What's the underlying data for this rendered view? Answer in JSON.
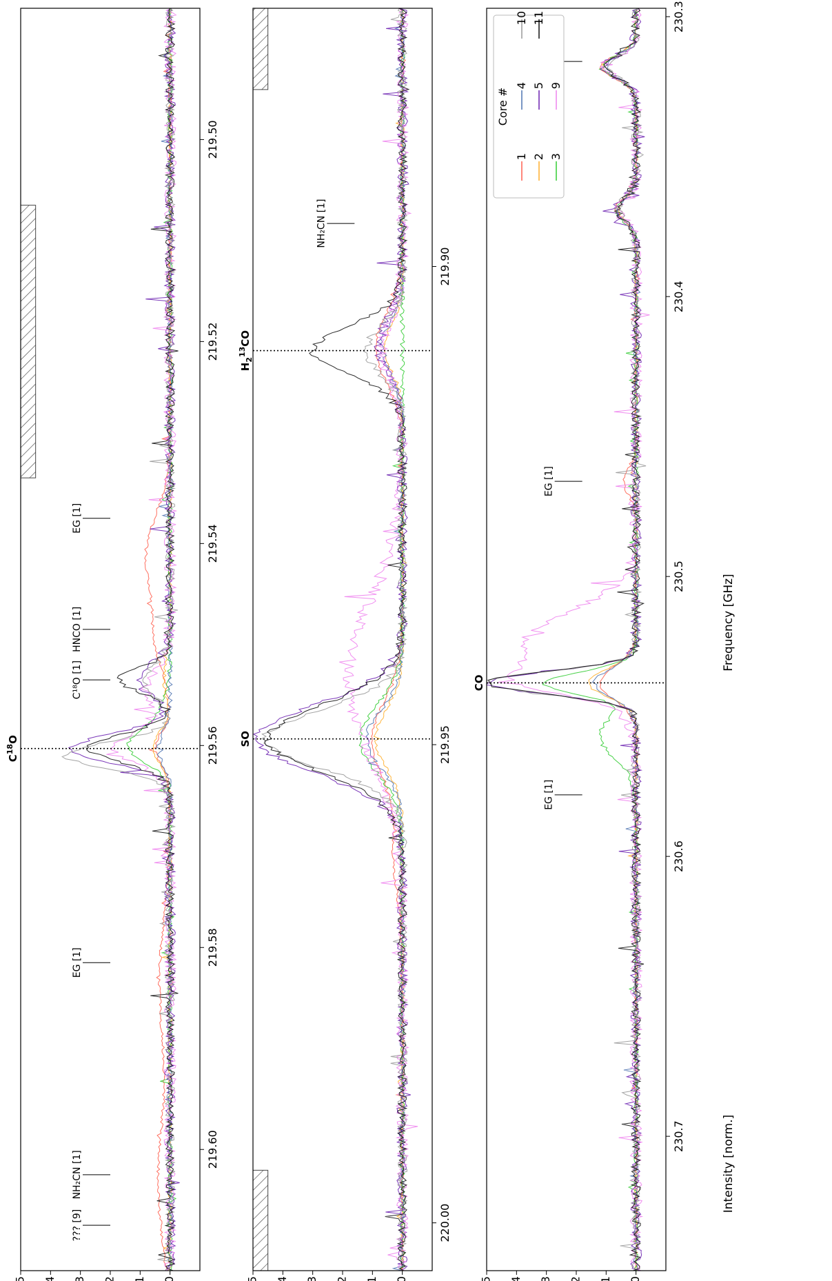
{
  "chart_data": [
    {
      "type": "line",
      "panel": "top",
      "x_axis": {
        "ticks": [
          "219.50",
          "219.52",
          "219.54",
          "219.56",
          "219.58",
          "219.60"
        ],
        "tick_values": [
          219.5,
          219.52,
          219.54,
          219.56,
          219.58,
          219.6
        ],
        "range": [
          219.487,
          219.612
        ]
      },
      "y_axis": {
        "ticks": [
          "0",
          "1",
          "2",
          "3",
          "4",
          "5"
        ],
        "tick_values": [
          0,
          1,
          2,
          3,
          4,
          5
        ],
        "range": [
          -1.0,
          5.0
        ]
      },
      "main_line": {
        "label_main": "C",
        "label_sup": "18",
        "label_tail": "O",
        "x": 219.5603
      },
      "hatched_regions": [
        {
          "x0": 219.5065,
          "x1": 219.5335,
          "y0": 4.5,
          "y1": 5.0
        }
      ],
      "annotations": [
        {
          "x": 219.5375,
          "label": "EG [1]",
          "y": 2.0
        },
        {
          "x": 219.5485,
          "label": "HNCO [1]",
          "y": 2.0
        },
        {
          "x": 219.5535,
          "label": "C¹⁸O [1]",
          "y": 2.0
        },
        {
          "x": 219.5815,
          "label": "EG [1]",
          "y": 2.0
        },
        {
          "x": 219.6025,
          "label": "NH₂CN [1]",
          "y": 2.0
        },
        {
          "x": 219.6075,
          "label": "??? [9]",
          "y": 2.0
        }
      ],
      "series": [
        {
          "name": "1",
          "color": "#ff5f4f",
          "profile": [
            [
              219.5412,
              0.8,
              0.004
            ],
            [
              219.5495,
              0.45,
              0.003
            ],
            [
              219.5603,
              0.5,
              0.0015
            ],
            [
              219.5835,
              0.35,
              0.006
            ],
            [
              219.6032,
              0.4,
              0.006
            ]
          ]
        },
        {
          "name": "2",
          "color": "#ffae2a",
          "profile": [
            [
              219.5603,
              0.6,
              0.0015
            ],
            [
              219.5535,
              0.2,
              0.002
            ]
          ]
        },
        {
          "name": "3",
          "color": "#33cc33",
          "profile": [
            [
              219.5603,
              1.2,
              0.0015
            ],
            [
              219.5578,
              0.4,
              0.002
            ]
          ]
        },
        {
          "name": "4",
          "color": "#4c72b0",
          "profile": [
            [
              219.5603,
              0.4,
              0.0015
            ]
          ]
        },
        {
          "name": "5",
          "color": "#6a1fb0",
          "profile": [
            [
              219.5603,
              3.3,
              0.0014
            ],
            [
              219.5535,
              1.1,
              0.0015
            ]
          ]
        },
        {
          "name": "9",
          "color": "#ee82ee",
          "profile": [
            [
              219.5603,
              1.8,
              0.0016
            ],
            [
              219.5545,
              0.8,
              0.002
            ]
          ]
        },
        {
          "name": "10",
          "color": "#999999",
          "profile": [
            [
              219.561,
              3.5,
              0.0013
            ],
            [
              219.5535,
              0.9,
              0.0015
            ]
          ]
        },
        {
          "name": "11",
          "color": "#111111",
          "profile": [
            [
              219.5603,
              2.7,
              0.0014
            ],
            [
              219.5535,
              1.7,
              0.0012
            ]
          ]
        }
      ]
    },
    {
      "type": "line",
      "panel": "middle",
      "x_axis": {
        "ticks": [
          "219.90",
          "219.95",
          "220.00"
        ],
        "tick_values": [
          219.9,
          219.95,
          220.0
        ],
        "range": [
          219.873,
          220.005
        ]
      },
      "y_axis": {
        "ticks": [
          "0",
          "1",
          "2",
          "3",
          "4",
          "5"
        ],
        "tick_values": [
          0,
          1,
          2,
          3,
          4,
          5
        ],
        "range": [
          -1.0,
          5.0
        ]
      },
      "main_lines": [
        {
          "label_main": "H",
          "label_sub": "2",
          "label_sup": "13",
          "label_tail": "CO",
          "x": 219.9088
        },
        {
          "label_main": "SO",
          "x": 219.9494
        }
      ],
      "hatched_regions": [
        {
          "x0": 219.873,
          "x1": 219.8815,
          "y0": 4.5,
          "y1": 5.0
        },
        {
          "x0": 219.9945,
          "x1": 220.005,
          "y0": 4.5,
          "y1": 5.0
        }
      ],
      "annotations": [
        {
          "x": 219.8955,
          "label": "NH₂CN [1]",
          "y": 1.6
        }
      ],
      "series": [
        {
          "name": "1",
          "color": "#ff5f4f",
          "profile": [
            [
              219.9085,
              0.9,
              0.0035
            ],
            [
              219.9494,
              1.0,
              0.004
            ],
            [
              219.9615,
              0.3,
              0.004
            ]
          ]
        },
        {
          "name": "2",
          "color": "#ffae2a",
          "profile": [
            [
              219.9085,
              0.6,
              0.0025
            ],
            [
              219.9494,
              0.9,
              0.003
            ]
          ]
        },
        {
          "name": "3",
          "color": "#33cc33",
          "profile": [
            [
              219.9494,
              1.4,
              0.0035
            ]
          ]
        },
        {
          "name": "4",
          "color": "#4c72b0",
          "profile": [
            [
              219.9085,
              0.7,
              0.0025
            ],
            [
              219.9494,
              1.2,
              0.003
            ]
          ]
        },
        {
          "name": "5",
          "color": "#6a1fb0",
          "profile": [
            [
              219.9085,
              0.8,
              0.003
            ],
            [
              219.9494,
              4.9,
              0.0035
            ]
          ]
        },
        {
          "name": "9",
          "color": "#ee82ee",
          "profile": [
            [
              219.9088,
              0.7,
              0.003
            ],
            [
              219.943,
              1.8,
              0.008
            ]
          ]
        },
        {
          "name": "10",
          "color": "#999999",
          "profile": [
            [
              219.9088,
              1.2,
              0.0025
            ],
            [
              219.9494,
              4.6,
              0.003
            ]
          ]
        },
        {
          "name": "11",
          "color": "#111111",
          "profile": [
            [
              219.9088,
              3.0,
              0.0025
            ],
            [
              219.9494,
              4.5,
              0.0035
            ]
          ]
        }
      ]
    },
    {
      "type": "line",
      "panel": "bottom",
      "x_axis": {
        "ticks": [
          "230.3",
          "230.4",
          "230.5",
          "230.6",
          "230.7"
        ],
        "tick_values": [
          230.3,
          230.4,
          230.5,
          230.6,
          230.7
        ],
        "range": [
          230.297,
          230.748
        ]
      },
      "y_axis": {
        "ticks": [
          "0",
          "1",
          "2",
          "3",
          "4",
          "5"
        ],
        "tick_values": [
          0,
          1,
          2,
          3,
          4,
          5
        ],
        "range": [
          -1.0,
          5.0
        ]
      },
      "xlabel": "Frequency [GHz]",
      "ylabel": "Intensity [norm.]",
      "main_line": {
        "label_main": "CO",
        "x": 230.538
      },
      "annotations": [
        {
          "x": 230.316,
          "label": "EG [1]",
          "y": 1.8
        },
        {
          "x": 230.466,
          "label": "EG [1]",
          "y": 1.8
        },
        {
          "x": 230.578,
          "label": "EG [1]",
          "y": 1.8
        }
      ],
      "legend": {
        "title": "Core #",
        "position": "upper right",
        "entries": [
          "1",
          "2",
          "3",
          "4",
          "5",
          "9",
          "10",
          "11"
        ]
      },
      "series": [
        {
          "name": "1",
          "color": "#ff5f4f",
          "profile": [
            [
              230.318,
              1.2,
              0.004
            ],
            [
              230.369,
              0.7,
              0.004
            ],
            [
              230.466,
              0.4,
              0.005
            ],
            [
              230.538,
              1.2,
              0.006
            ]
          ]
        },
        {
          "name": "2",
          "color": "#ffae2a",
          "profile": [
            [
              230.318,
              1.1,
              0.004
            ],
            [
              230.369,
              0.6,
              0.004
            ],
            [
              230.538,
              1.6,
              0.005
            ]
          ]
        },
        {
          "name": "3",
          "color": "#33cc33",
          "profile": [
            [
              230.318,
              1.1,
              0.004
            ],
            [
              230.369,
              0.7,
              0.004
            ],
            [
              230.538,
              3.0,
              0.004
            ],
            [
              230.557,
              1.2,
              0.008
            ]
          ]
        },
        {
          "name": "4",
          "color": "#4c72b0",
          "profile": [
            [
              230.318,
              1.0,
              0.004
            ],
            [
              230.369,
              0.6,
              0.004
            ],
            [
              230.538,
              1.4,
              0.005
            ]
          ]
        },
        {
          "name": "5",
          "color": "#6a1fb0",
          "profile": [
            [
              230.318,
              1.1,
              0.004
            ],
            [
              230.369,
              0.7,
              0.004
            ],
            [
              230.538,
              5.0,
              0.004
            ]
          ]
        },
        {
          "name": "9",
          "color": "#ee82ee",
          "profile": [
            [
              230.318,
              1.0,
              0.004
            ],
            [
              230.369,
              0.6,
              0.004
            ],
            [
              230.525,
              3.8,
              0.012
            ],
            [
              230.538,
              2.0,
              0.004
            ]
          ]
        },
        {
          "name": "10",
          "color": "#999999",
          "profile": [
            [
              230.318,
              1.0,
              0.004
            ],
            [
              230.369,
              0.6,
              0.004
            ],
            [
              230.538,
              5.0,
              0.004
            ]
          ]
        },
        {
          "name": "11",
          "color": "#111111",
          "profile": [
            [
              230.318,
              1.0,
              0.004
            ],
            [
              230.369,
              0.6,
              0.004
            ],
            [
              230.538,
              5.0,
              0.004
            ]
          ]
        }
      ]
    }
  ]
}
